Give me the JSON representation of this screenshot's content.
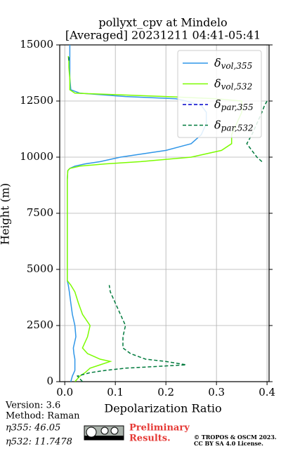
{
  "chart_data": {
    "type": "line",
    "title": "pollyxt_cpv at Mindelo",
    "subtitle": "[Averaged] 20231211 04:41-05:41",
    "xlabel": "Depolarization Ratio",
    "ylabel": "Height (m)",
    "y": [
      0,
      250,
      400,
      500,
      600,
      750,
      900,
      1000,
      1250,
      1500,
      2000,
      2500,
      3000,
      3500,
      4000,
      4300,
      4500,
      5000,
      6000,
      7000,
      8000,
      9000,
      9400,
      9500,
      9600,
      9700,
      9800,
      10000,
      10300,
      10600,
      11000,
      11500,
      12000,
      12300,
      12500,
      12600,
      12700,
      12850,
      13000,
      13500,
      14000,
      14300,
      14500,
      15000
    ],
    "series": [
      {
        "name": "δvol,355",
        "color": "#2f96e8",
        "dash": false,
        "values": [
          0.012,
          0.015,
          0.018,
          0.02,
          0.02,
          0.02,
          0.02,
          0.02,
          0.018,
          0.017,
          0.022,
          0.02,
          0.015,
          0.012,
          0.009,
          0.007,
          0.005,
          0.005,
          0.005,
          0.005,
          0.005,
          0.005,
          0.006,
          0.01,
          0.02,
          0.04,
          0.07,
          0.11,
          0.2,
          0.25,
          0.27,
          0.28,
          0.28,
          0.27,
          0.24,
          0.22,
          0.12,
          0.03,
          0.012,
          0.01,
          0.01,
          0.01,
          0.01,
          0.01
        ]
      },
      {
        "name": "δvol,532",
        "color": "#7cfc00",
        "dash": false,
        "values": [
          0.02,
          0.03,
          0.04,
          0.045,
          0.05,
          0.07,
          0.09,
          0.07,
          0.045,
          0.035,
          0.045,
          0.05,
          0.035,
          0.027,
          0.02,
          0.012,
          0.005,
          0.005,
          0.005,
          0.005,
          0.005,
          0.005,
          0.006,
          0.01,
          0.03,
          0.08,
          0.15,
          0.25,
          0.31,
          0.33,
          0.33,
          0.34,
          0.35,
          0.35,
          0.35,
          0.3,
          0.2,
          0.02,
          0.01,
          0.01,
          0.008,
          0.008,
          0.007,
          null
        ]
      },
      {
        "name": "δpar,355",
        "color": "#0000cc",
        "dash": true,
        "values": [
          null,
          null,
          null,
          null,
          null,
          null,
          null,
          null,
          null,
          null,
          null,
          null,
          null,
          null,
          null,
          null,
          null,
          null,
          null,
          null,
          null,
          null,
          null,
          null,
          null,
          null,
          null,
          null,
          null,
          null,
          null,
          null,
          null,
          null,
          null,
          null,
          null,
          null,
          null,
          null,
          null,
          null,
          null,
          null
        ]
      },
      {
        "name": "δpar,532",
        "color": "#007a3d",
        "dash": true,
        "values": [
          0.035,
          0.025,
          0.05,
          0.08,
          0.12,
          0.24,
          0.2,
          0.16,
          0.13,
          0.115,
          0.115,
          0.12,
          0.11,
          0.1,
          0.09,
          0.088,
          null,
          null,
          null,
          null,
          null,
          null,
          null,
          null,
          null,
          null,
          0.39,
          0.38,
          0.37,
          0.36,
          0.37,
          0.38,
          0.39,
          0.395,
          0.4,
          null,
          null,
          null,
          null,
          null,
          null,
          0.008,
          0.008,
          null
        ]
      }
    ],
    "xlim": [
      -0.01,
      0.404
    ],
    "ylim": [
      0,
      15000
    ],
    "xticks": [
      {
        "value": 0,
        "label": "0.0"
      },
      0.1,
      0.2,
      0.3,
      0.4
    ],
    "yticks": [
      0,
      2500,
      5000,
      7500,
      10000,
      12500,
      15000
    ],
    "grid": true,
    "legend": "upper right"
  },
  "footer": {
    "lines": [
      "Version: 3.6",
      "Method: Raman",
      "η355:  46.05",
      "η532: 11.7478"
    ],
    "notice": [
      "Preliminary",
      "Results."
    ],
    "copyright": [
      "© TROPOS & OSCM 2023.",
      "CC BY SA 4.0 License."
    ]
  }
}
